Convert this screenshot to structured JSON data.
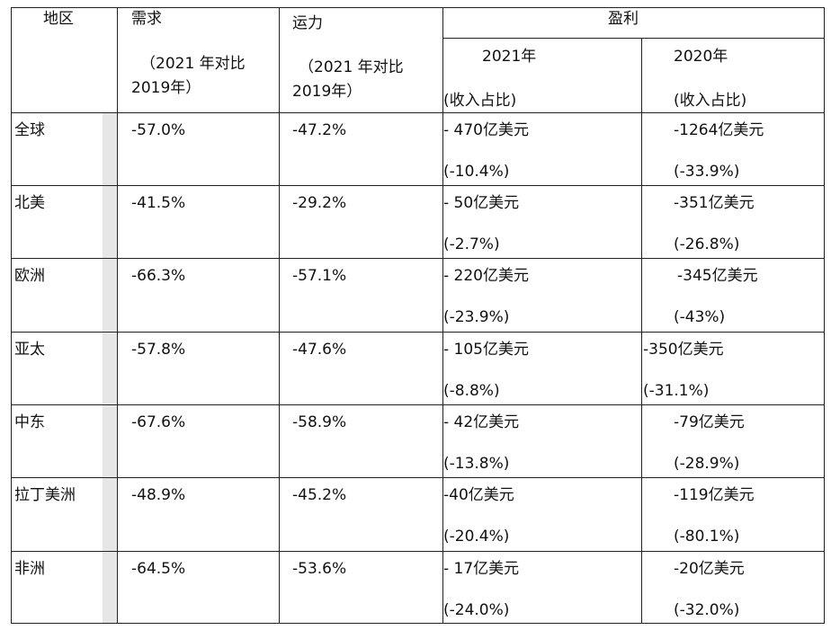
{
  "headers": {
    "region": "地区",
    "demand": "需求",
    "demand_sub": [
      "（2021 年对比",
      "2019年）"
    ],
    "capacity": "运力",
    "capacity_sub": [
      "（2021 年对比",
      "2019年）"
    ],
    "profit": "盈利",
    "y2021": "2021年",
    "y2020": "2020年",
    "share_2021": "(收入占比)",
    "share_2020": "(收入占比)"
  },
  "rows": [
    {
      "region": "全球",
      "demand": "-57.0%",
      "capacity": "-47.2%",
      "p2021": "- 470亿美元",
      "r2021": "(-10.4%)",
      "p2020": "-1264亿美元",
      "r2020": "(-33.9%)"
    },
    {
      "region": "北美",
      "demand": "-41.5%",
      "capacity": "-29.2%",
      "p2021": "- 50亿美元",
      "r2021": "(-2.7%)",
      "p2020": "-351亿美元",
      "r2020": "(-26.8%)"
    },
    {
      "region": "欧洲",
      "demand": "-66.3%",
      "capacity": "-57.1%",
      "p2021": "- 220亿美元",
      "r2021": "(-23.9%)",
      "p2020": "-345亿美元",
      "r2020": "(-43%)"
    },
    {
      "region": "亚太",
      "demand": "-57.8%",
      "capacity": "-47.6%",
      "p2021": "- 105亿美元",
      "r2021": "(-8.8%)",
      "p2020": "-350亿美元",
      "r2020": "(-31.1%)"
    },
    {
      "region": "中东",
      "demand": "-67.6%",
      "capacity": "-58.9%",
      "p2021": "- 42亿美元",
      "r2021": "(-13.8%)",
      "p2020": "-79亿美元",
      "r2020": "(-28.9%)"
    },
    {
      "region": "拉丁美洲",
      "demand": "-48.9%",
      "capacity": "-45.2%",
      "p2021": "-40亿美元",
      "r2021": "(-20.4%)",
      "p2020": "-119亿美元",
      "r2020": "(-80.1%)"
    },
    {
      "region": "非洲",
      "demand": "-64.5%",
      "capacity": "-53.6%",
      "p2021": "- 17亿美元",
      "r2021": "(-24.0%)",
      "p2020": "-20亿美元",
      "r2020": "(-32.0%)"
    }
  ]
}
